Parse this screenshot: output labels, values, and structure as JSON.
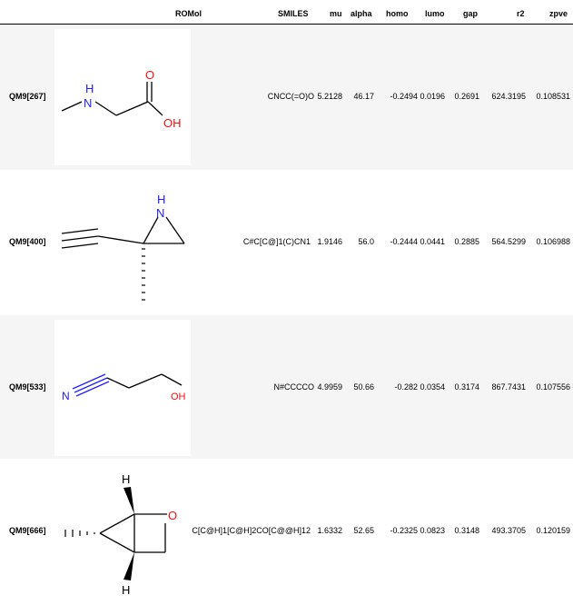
{
  "table": {
    "headers": {
      "romol": "ROMol",
      "smiles": "SMILES",
      "mu": "mu",
      "alpha": "alpha",
      "homo": "homo",
      "lumo": "lumo",
      "gap": "gap",
      "r2": "r2",
      "zpve": "zpve"
    },
    "rows": [
      {
        "index": "QM9[267]",
        "smiles": "CNCC(=O)O",
        "mu": "5.2128",
        "alpha": "46.17",
        "homo": "-0.2494",
        "lumo": "0.0196",
        "gap": "0.2691",
        "r2": "624.3195",
        "zpve": "0.108531",
        "atoms": {
          "a": "H",
          "b": "N",
          "c": "O",
          "d": "OH"
        }
      },
      {
        "index": "QM9[400]",
        "smiles": "C#C[C@]1(C)CN1",
        "mu": "1.9146",
        "alpha": "56.0",
        "homo": "-0.2444",
        "lumo": "0.0441",
        "gap": "0.2885",
        "r2": "564.5299",
        "zpve": "0.106988",
        "atoms": {
          "a": "H",
          "b": "N"
        }
      },
      {
        "index": "QM9[533]",
        "smiles": "N#CCCCO",
        "mu": "4.9959",
        "alpha": "50.66",
        "homo": "-0.282",
        "lumo": "0.0354",
        "gap": "0.3174",
        "r2": "867.7431",
        "zpve": "0.107556",
        "atoms": {
          "a": "N",
          "b": "OH"
        }
      },
      {
        "index": "QM9[666]",
        "smiles": "C[C@H]1[C@H]2CO[C@@H]12",
        "mu": "1.6332",
        "alpha": "52.65",
        "homo": "-0.2325",
        "lumo": "0.0823",
        "gap": "0.3148",
        "r2": "493.3705",
        "zpve": "0.120159",
        "atoms": {
          "a": "H",
          "b": "O",
          "c": "H"
        }
      }
    ]
  },
  "colors": {
    "nitrogen": "#2020ff",
    "oxygen": "#ff0d0d",
    "bond": "#000000",
    "row_shade": "#f5f5f5"
  }
}
